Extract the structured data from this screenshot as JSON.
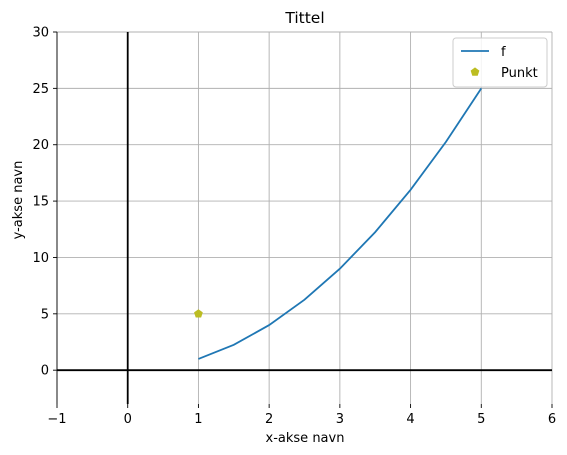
{
  "chart_data": {
    "type": "line",
    "title": "Tittel",
    "xlabel": "x-akse navn",
    "ylabel": "y-akse navn",
    "xlim": [
      -1,
      6
    ],
    "ylim": [
      -3,
      30
    ],
    "xticks": [
      -1,
      0,
      1,
      2,
      3,
      4,
      5,
      6
    ],
    "yticks": [
      0,
      5,
      10,
      15,
      20,
      25,
      30
    ],
    "xtick_labels": [
      "−1",
      "0",
      "1",
      "2",
      "3",
      "4",
      "5",
      "6"
    ],
    "ytick_labels": [
      "0",
      "5",
      "10",
      "15",
      "20",
      "25",
      "30"
    ],
    "grid": true,
    "legend_position": "top-right",
    "series": [
      {
        "name": "f",
        "kind": "line",
        "color": "#1f77b4",
        "x": [
          1,
          1.5,
          2,
          2.5,
          3,
          3.5,
          4,
          4.5,
          5
        ],
        "y": [
          1,
          2.25,
          4,
          6.25,
          9,
          12.25,
          16,
          20.25,
          25
        ]
      },
      {
        "name": "Punkt",
        "kind": "point",
        "marker": "pentagon",
        "color": "#bcbd22",
        "x": [
          1
        ],
        "y": [
          5
        ]
      }
    ]
  }
}
